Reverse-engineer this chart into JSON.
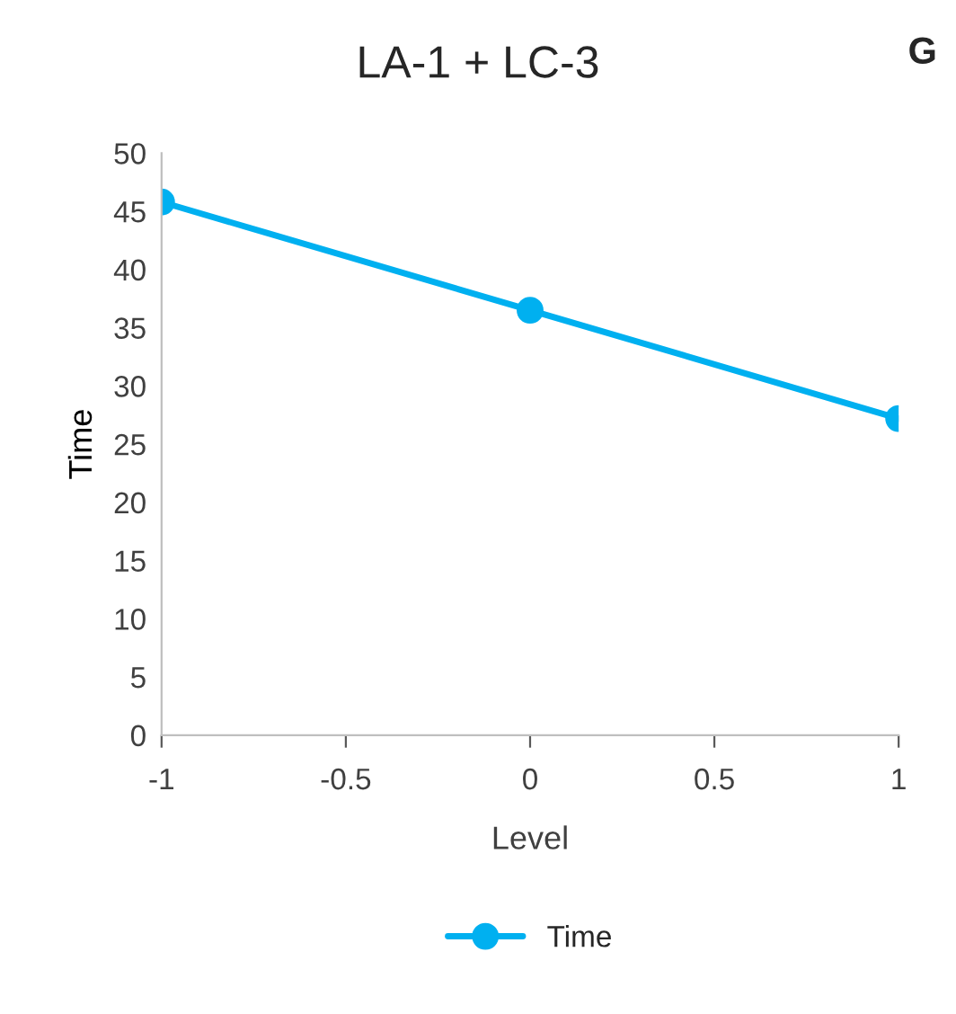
{
  "chart_data": {
    "type": "line",
    "title": "LA-1 + LC-3",
    "xlabel": "Level",
    "ylabel": "Time",
    "annotations": [
      "G"
    ],
    "x": [
      -1,
      0,
      1
    ],
    "series": [
      {
        "name": "Time",
        "color": "#00b0f0",
        "values": [
          45.8,
          36.5,
          27.2
        ]
      }
    ],
    "xlim": [
      -1,
      1
    ],
    "xticks": [
      -1,
      -0.5,
      0,
      0.5,
      1
    ],
    "ylim": [
      0,
      50
    ],
    "yticks": [
      0,
      5,
      10,
      15,
      20,
      25,
      30,
      35,
      40,
      45,
      50
    ],
    "grid": false,
    "legend": "bottom",
    "marker": "circle",
    "line_style": "solid"
  }
}
